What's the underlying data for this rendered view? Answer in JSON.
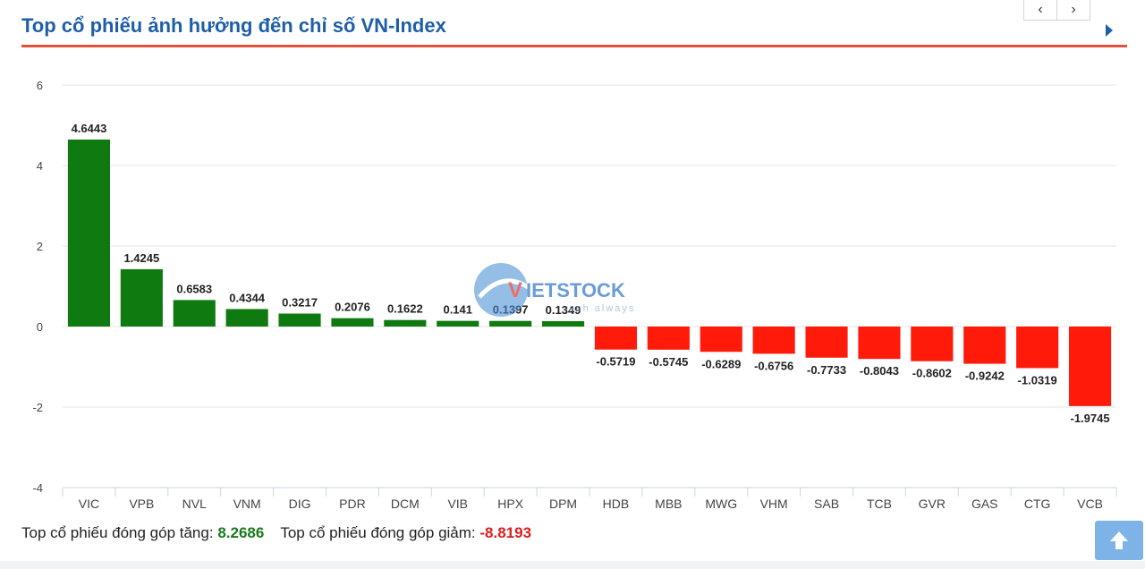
{
  "header": {
    "title": "Top cổ phiếu ảnh hưởng đến chỉ số VN-Index",
    "prev_icon": "chevron-left-icon",
    "next_icon": "chevron-right-icon"
  },
  "chart_data": {
    "type": "bar",
    "categories": [
      "VIC",
      "VPB",
      "NVL",
      "VNM",
      "DIG",
      "PDR",
      "DCM",
      "VIB",
      "HPX",
      "DPM",
      "HDB",
      "MBB",
      "MWG",
      "VHM",
      "SAB",
      "TCB",
      "GVR",
      "GAS",
      "CTG",
      "VCB"
    ],
    "values": [
      4.6443,
      1.4245,
      0.6583,
      0.4344,
      0.3217,
      0.2076,
      0.1622,
      0.141,
      0.1397,
      0.1349,
      -0.5719,
      -0.5745,
      -0.6289,
      -0.6756,
      -0.7733,
      -0.8043,
      -0.8602,
      -0.9242,
      -1.0319,
      -1.9745
    ],
    "labels": [
      "4.6443",
      "1.4245",
      "0.6583",
      "0.4344",
      "0.3217",
      "0.2076",
      "0.1622",
      "0.141",
      "0.1397",
      "0.1349",
      "-0.5719",
      "-0.5745",
      "-0.6289",
      "-0.6756",
      "-0.7733",
      "-0.8043",
      "-0.8602",
      "-0.9242",
      "-1.0319",
      "-1.9745"
    ],
    "ylim": [
      -4,
      6
    ],
    "yticks": [
      6,
      4,
      2,
      0,
      -2,
      -4
    ],
    "grid": true,
    "colors": {
      "positive": "#0f7a0f",
      "negative": "#ff1a0a"
    }
  },
  "watermark": {
    "brand_v": "V",
    "brand_rest": "IETSTOCK",
    "tagline": "ash always"
  },
  "footer": {
    "up_label": "Top cổ phiếu đóng góp tăng:",
    "up_value": "8.2686",
    "down_label": "Top cổ phiếu đóng góp giảm:",
    "down_value": "-8.8193"
  },
  "scroll_top_icon": "arrow-up-icon"
}
